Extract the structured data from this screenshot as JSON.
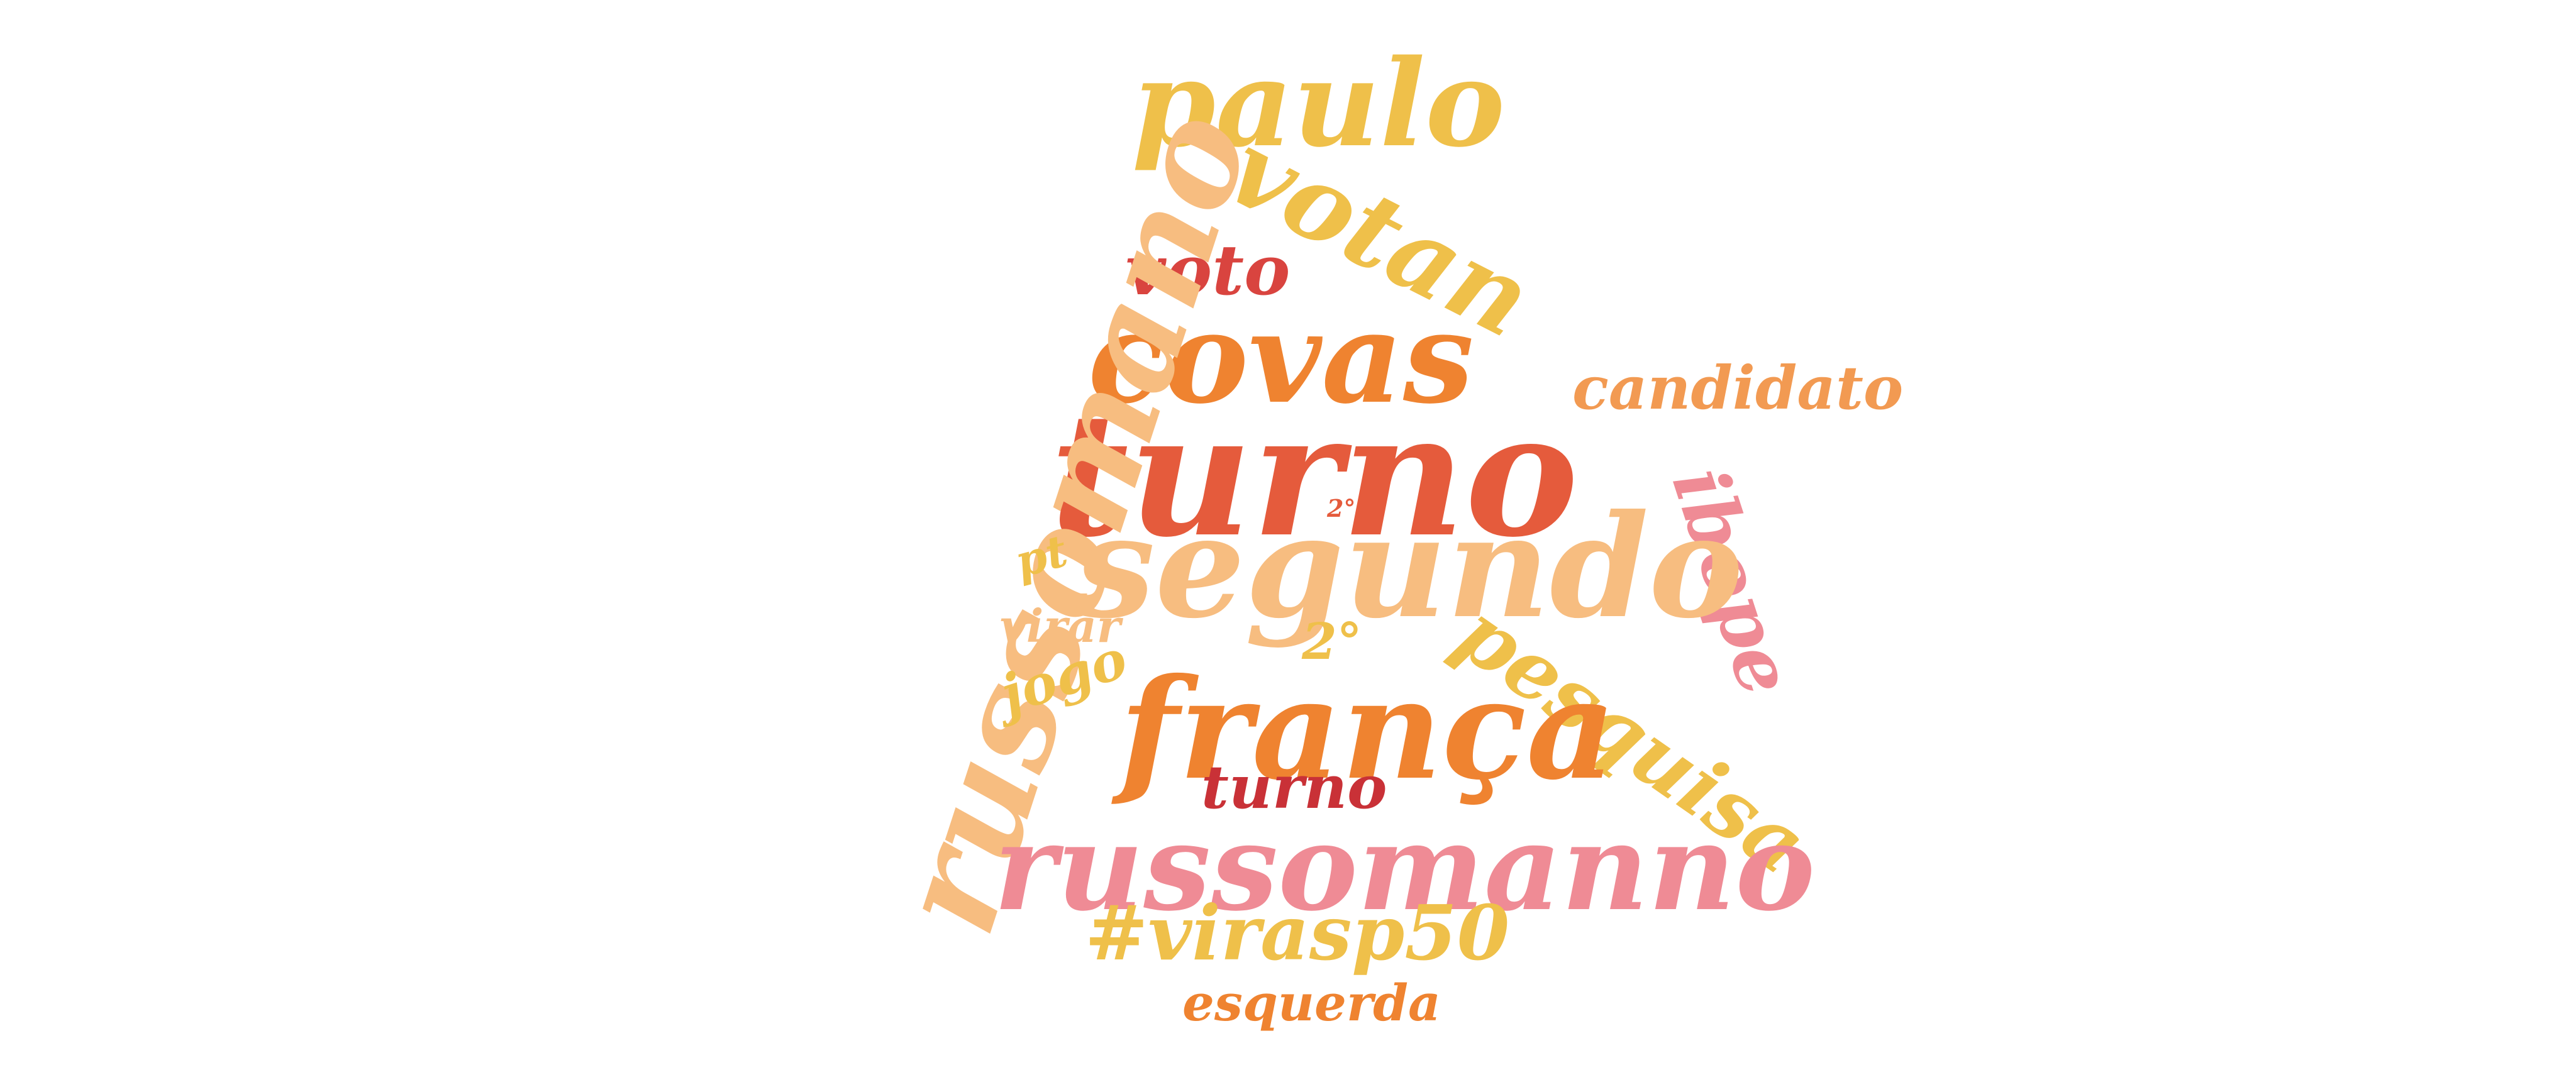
{
  "word_cloud": {
    "words": [
      {
        "id": "paulo",
        "text": "paulo",
        "color": "#efc04a"
      },
      {
        "id": "votan",
        "text": "votan",
        "color": "#efc04a"
      },
      {
        "id": "voto",
        "text": "voto",
        "color": "#d9443f"
      },
      {
        "id": "covas",
        "text": "covas",
        "color": "#ef8330"
      },
      {
        "id": "turno-large",
        "text": "turno",
        "color": "#e55b3c"
      },
      {
        "id": "candidato",
        "text": "candidato",
        "color": "#f29a52"
      },
      {
        "id": "russomano",
        "text": "russomano",
        "color": "#f7bd80"
      },
      {
        "id": "ibope",
        "text": "ibope",
        "color": "#ef8b95"
      },
      {
        "id": "segundo",
        "text": "segundo",
        "color": "#f7bd80"
      },
      {
        "id": "pt",
        "text": "pt",
        "color": "#efc04a"
      },
      {
        "id": "2o-small",
        "text": "2°",
        "color": "#e55b3c"
      },
      {
        "id": "2o",
        "text": "2°",
        "color": "#efc04a"
      },
      {
        "id": "virar",
        "text": "virar",
        "color": "#f7bd80"
      },
      {
        "id": "jogo",
        "text": "jogo",
        "color": "#efc04a"
      },
      {
        "id": "pesquisa",
        "text": "pesquisa",
        "color": "#efc04a"
      },
      {
        "id": "franca",
        "text": "frança",
        "color": "#ef8330"
      },
      {
        "id": "turno-small",
        "text": "turno",
        "color": "#c93137"
      },
      {
        "id": "russomanno",
        "text": "russomanno",
        "color": "#ef8b95"
      },
      {
        "id": "virasp50",
        "text": "#virasp50",
        "color": "#efc04a"
      },
      {
        "id": "esquerda",
        "text": "esquerda",
        "color": "#ef8330"
      }
    ]
  }
}
